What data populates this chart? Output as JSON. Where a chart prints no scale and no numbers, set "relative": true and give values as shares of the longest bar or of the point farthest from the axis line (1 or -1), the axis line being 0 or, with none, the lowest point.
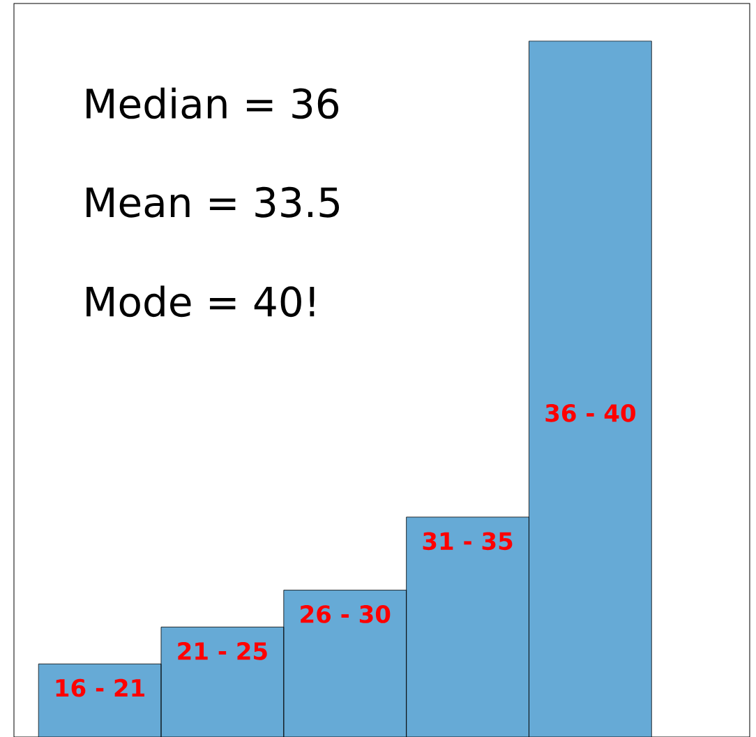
{
  "chart_data": {
    "type": "bar",
    "relative": true,
    "categories": [
      "16 - 21",
      "21 - 25",
      "26 - 30",
      "31 - 35",
      "36 - 40"
    ],
    "values": [
      0.105,
      0.158,
      0.211,
      0.316,
      1
    ],
    "color": "#66aad6",
    "annotations": [
      "Median = 36",
      "Mean = 33.5",
      "Mode = 40!"
    ]
  }
}
